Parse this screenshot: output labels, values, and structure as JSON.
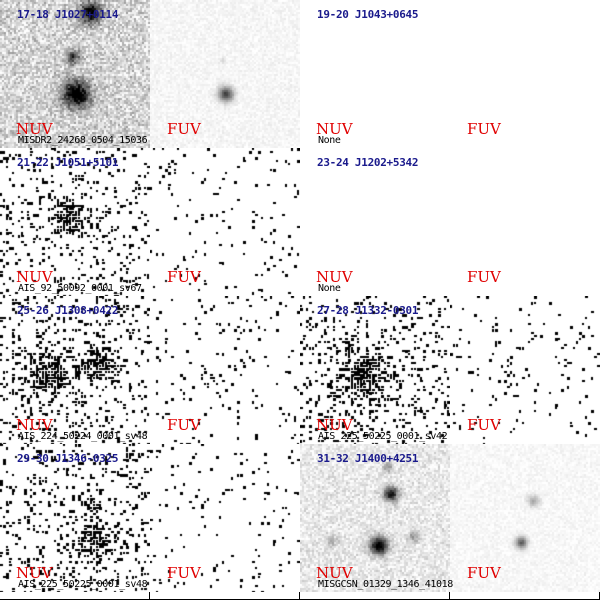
{
  "cells": [
    {
      "label": "17-18 J1027+0114",
      "nuv_band": "NUV",
      "fuv_band": "FUV",
      "tile": "MISDR2_24268_0504_15036",
      "nuv": {
        "bg": 0.24,
        "noise": 0.45,
        "blobs": [
          [
            0.6,
            0.08,
            0.07,
            0.9
          ],
          [
            0.48,
            0.38,
            0.05,
            0.55
          ],
          [
            0.5,
            0.63,
            0.09,
            1.0
          ]
        ]
      },
      "fuv": {
        "bg": 0.05,
        "noise": 0.12,
        "blobs": [
          [
            0.5,
            0.63,
            0.05,
            0.7
          ],
          [
            0.48,
            0.4,
            0.02,
            0.12
          ]
        ]
      }
    },
    {
      "label": "19-20 J1043+0645",
      "nuv_band": "NUV",
      "fuv_band": "FUV",
      "tile": "None",
      "nuv": {
        "bg": 0,
        "noise": 0,
        "blobs": []
      },
      "fuv": {
        "bg": 0,
        "noise": 0,
        "blobs": []
      }
    },
    {
      "label": "21-22 J1051+5101",
      "nuv_band": "NUV",
      "fuv_band": "FUV",
      "tile": "AIS_92_50092_0001_sv67",
      "nuv": {
        "bg": 0.18,
        "noise": 0.95,
        "speckle": true,
        "blobs": [
          [
            0.47,
            0.47,
            0.12,
            0.85
          ]
        ]
      },
      "fuv": {
        "bg": 0.04,
        "noise": 0.35,
        "speckle": true,
        "blobs": [
          [
            0.45,
            0.5,
            0.1,
            0.12
          ]
        ]
      }
    },
    {
      "label": "23-24 J1202+5342",
      "nuv_band": "NUV",
      "fuv_band": "FUV",
      "tile": "None",
      "nuv": {
        "bg": 0,
        "noise": 0,
        "blobs": []
      },
      "fuv": {
        "bg": 0,
        "noise": 0,
        "blobs": []
      }
    },
    {
      "label": "25-26 J1308+0422",
      "nuv_band": "NUV",
      "fuv_band": "FUV",
      "tile": "AIS_224_50224_0001_sv48",
      "nuv": {
        "bg": 0.2,
        "noise": 0.95,
        "speckle": true,
        "blobs": [
          [
            0.33,
            0.52,
            0.13,
            0.95
          ],
          [
            0.65,
            0.46,
            0.11,
            0.9
          ]
        ]
      },
      "fuv": {
        "bg": 0.04,
        "noise": 0.35,
        "speckle": true,
        "blobs": [
          [
            0.35,
            0.53,
            0.1,
            0.6
          ],
          [
            0.62,
            0.46,
            0.07,
            0.35
          ]
        ]
      }
    },
    {
      "label": "27-28 J1332-0301",
      "nuv_band": "NUV",
      "fuv_band": "FUV",
      "tile": "AIS_225_50225_0001_sv42",
      "nuv": {
        "bg": 0.22,
        "noise": 0.95,
        "speckle": true,
        "blobs": [
          [
            0.42,
            0.53,
            0.14,
            1.0
          ],
          [
            0.3,
            0.36,
            0.05,
            0.5
          ]
        ]
      },
      "fuv": {
        "bg": 0.05,
        "noise": 0.35,
        "speckle": true,
        "blobs": [
          [
            0.4,
            0.53,
            0.09,
            0.75
          ]
        ]
      }
    },
    {
      "label": "29-30 J1346-0325",
      "nuv_band": "NUV",
      "fuv_band": "FUV",
      "tile": "AIS_225_50225_0001_sv48",
      "nuv": {
        "bg": 0.2,
        "noise": 0.95,
        "speckle": true,
        "blobs": [
          [
            0.63,
            0.64,
            0.13,
            0.75
          ],
          [
            0.6,
            0.4,
            0.06,
            0.4
          ]
        ]
      },
      "fuv": {
        "bg": 0.04,
        "noise": 0.35,
        "speckle": true,
        "blobs": []
      }
    },
    {
      "label": "31-32 J1400+4251",
      "nuv_band": "NUV",
      "fuv_band": "FUV",
      "tile": "MISGCSN_01329_1346_41018",
      "nuv": {
        "bg": 0.12,
        "noise": 0.35,
        "blobs": [
          [
            0.52,
            0.68,
            0.06,
            1.0
          ],
          [
            0.6,
            0.33,
            0.05,
            0.85
          ],
          [
            0.58,
            0.15,
            0.03,
            0.4
          ],
          [
            0.2,
            0.65,
            0.04,
            0.25
          ],
          [
            0.75,
            0.62,
            0.04,
            0.3
          ]
        ]
      },
      "fuv": {
        "bg": 0.04,
        "noise": 0.14,
        "blobs": [
          [
            0.47,
            0.66,
            0.04,
            0.6
          ],
          [
            0.55,
            0.38,
            0.04,
            0.3
          ]
        ]
      }
    }
  ]
}
